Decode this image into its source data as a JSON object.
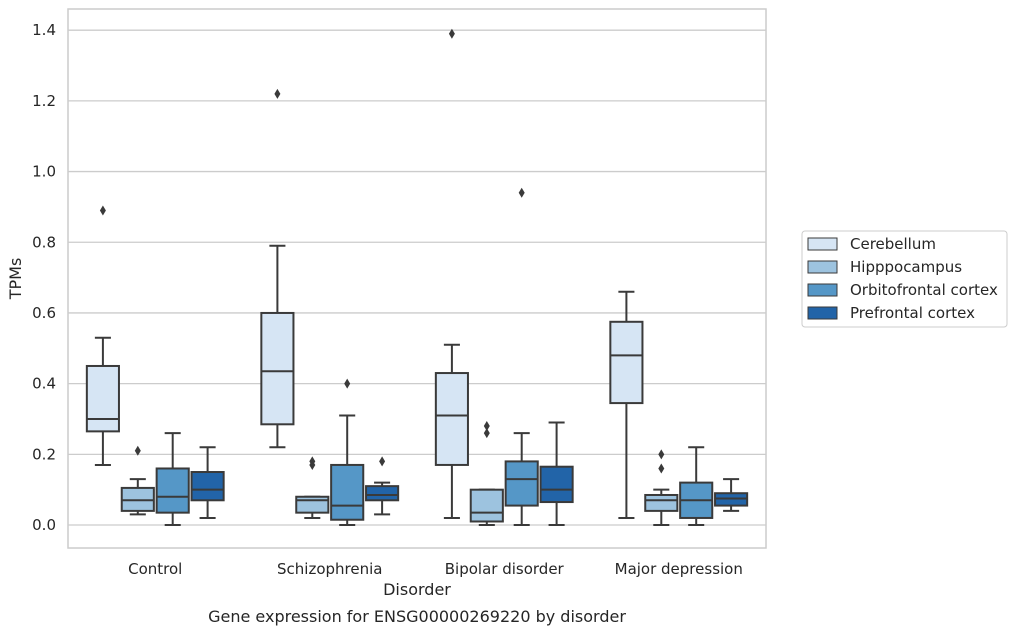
{
  "chart_data": {
    "type": "box",
    "xlabel": "Disorder",
    "ylabel": "TPMs",
    "caption": "Gene expression for ENSG00000269220 by disorder",
    "ylim": [
      -0.065,
      1.46
    ],
    "yticks": [
      "0.0",
      "0.2",
      "0.4",
      "0.6",
      "0.8",
      "1.0",
      "1.2",
      "1.4"
    ],
    "ytick_values": [
      0.0,
      0.2,
      0.4,
      0.6,
      0.8,
      1.0,
      1.2,
      1.4
    ],
    "grid": "horizontal",
    "legend_position": "right",
    "categories": [
      "Control",
      "Schizophrenia",
      "Bipolar disorder",
      "Major depression"
    ],
    "series": [
      {
        "name": "Cerebellum",
        "color": "#d6e5f4",
        "boxes": [
          {
            "whisker_low": 0.17,
            "q1": 0.265,
            "median": 0.3,
            "q3": 0.45,
            "whisker_high": 0.53,
            "outliers": [
              0.89
            ]
          },
          {
            "whisker_low": 0.22,
            "q1": 0.285,
            "median": 0.435,
            "q3": 0.6,
            "whisker_high": 0.79,
            "outliers": [
              1.22
            ]
          },
          {
            "whisker_low": 0.02,
            "q1": 0.17,
            "median": 0.31,
            "q3": 0.43,
            "whisker_high": 0.51,
            "outliers": [
              1.39
            ]
          },
          {
            "whisker_low": 0.02,
            "q1": 0.345,
            "median": 0.48,
            "q3": 0.575,
            "whisker_high": 0.66,
            "outliers": []
          }
        ]
      },
      {
        "name": "Hipppocampus",
        "color": "#9dc3df",
        "boxes": [
          {
            "whisker_low": 0.03,
            "q1": 0.04,
            "median": 0.07,
            "q3": 0.105,
            "whisker_high": 0.13,
            "outliers": [
              0.21
            ]
          },
          {
            "whisker_low": 0.02,
            "q1": 0.035,
            "median": 0.07,
            "q3": 0.08,
            "whisker_high": 0.08,
            "outliers": [
              0.17,
              0.18
            ]
          },
          {
            "whisker_low": 0.0,
            "q1": 0.01,
            "median": 0.035,
            "q3": 0.1,
            "whisker_high": 0.1,
            "outliers": [
              0.26,
              0.28
            ]
          },
          {
            "whisker_low": 0.0,
            "q1": 0.04,
            "median": 0.07,
            "q3": 0.085,
            "whisker_high": 0.1,
            "outliers": [
              0.16,
              0.2
            ]
          }
        ]
      },
      {
        "name": "Orbitofrontal cortex",
        "color": "#5597c7",
        "boxes": [
          {
            "whisker_low": 0.0,
            "q1": 0.035,
            "median": 0.08,
            "q3": 0.16,
            "whisker_high": 0.26,
            "outliers": []
          },
          {
            "whisker_low": 0.0,
            "q1": 0.015,
            "median": 0.055,
            "q3": 0.17,
            "whisker_high": 0.31,
            "outliers": [
              0.4
            ]
          },
          {
            "whisker_low": 0.0,
            "q1": 0.055,
            "median": 0.13,
            "q3": 0.18,
            "whisker_high": 0.26,
            "outliers": [
              0.94
            ]
          },
          {
            "whisker_low": 0.0,
            "q1": 0.02,
            "median": 0.07,
            "q3": 0.12,
            "whisker_high": 0.22,
            "outliers": []
          }
        ]
      },
      {
        "name": "Prefrontal cortex",
        "color": "#2264a8",
        "boxes": [
          {
            "whisker_low": 0.02,
            "q1": 0.07,
            "median": 0.1,
            "q3": 0.15,
            "whisker_high": 0.22,
            "outliers": []
          },
          {
            "whisker_low": 0.03,
            "q1": 0.07,
            "median": 0.085,
            "q3": 0.11,
            "whisker_high": 0.12,
            "outliers": [
              0.18
            ]
          },
          {
            "whisker_low": 0.0,
            "q1": 0.065,
            "median": 0.1,
            "q3": 0.165,
            "whisker_high": 0.29,
            "outliers": []
          },
          {
            "whisker_low": 0.04,
            "q1": 0.055,
            "median": 0.075,
            "q3": 0.09,
            "whisker_high": 0.13,
            "outliers": []
          }
        ]
      }
    ]
  }
}
